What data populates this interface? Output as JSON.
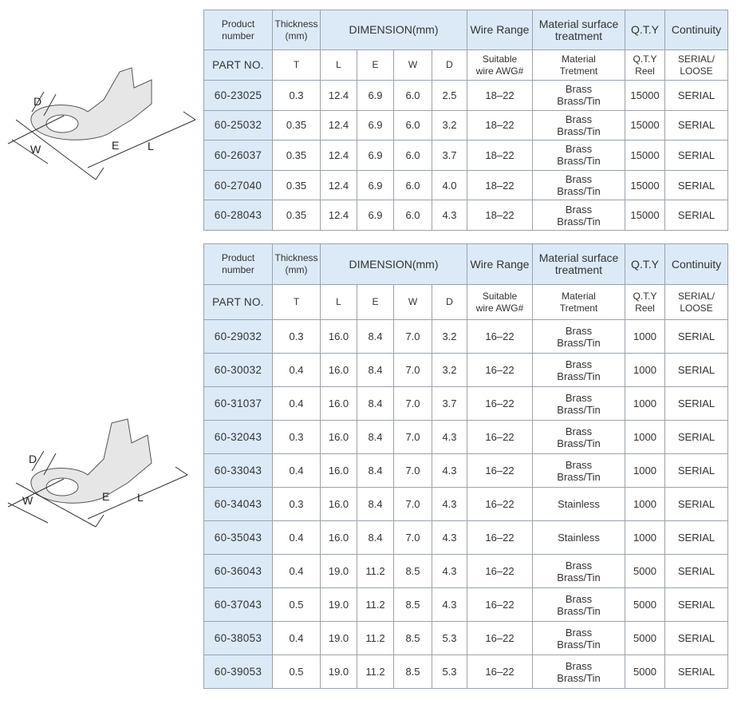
{
  "diagrams": [
    {
      "labels": {
        "D": "D",
        "W": "W",
        "E": "E",
        "L": "L"
      }
    },
    {
      "labels": {
        "D": "D",
        "W": "W",
        "E": "E",
        "L": "L"
      }
    }
  ],
  "tables": [
    {
      "header_top": [
        "Product\nnumber",
        "Thickness\n(mm)",
        "DIMENSION(mm)",
        "Wire Range",
        "Material surface\ntreatment",
        "Q.T.Y",
        "Continuity"
      ],
      "header_sub": [
        "PART NO.",
        "T",
        "L",
        "E",
        "W",
        "D",
        "Suitable\nwire AWG#",
        "Material\nTretment",
        "Q.T.Y\nReel",
        "SERIAL/\nLOOSE"
      ],
      "rows": [
        [
          "60-23025",
          "0.3",
          "12.4",
          "6.9",
          "6.0",
          "2.5",
          "18–22",
          "Brass\nBrass/Tin",
          "15000",
          "SERIAL"
        ],
        [
          "60-25032",
          "0.35",
          "12.4",
          "6.9",
          "6.0",
          "3.2",
          "18–22",
          "Brass\nBrass/Tin",
          "15000",
          "SERIAL"
        ],
        [
          "60-26037",
          "0.35",
          "12.4",
          "6.9",
          "6.0",
          "3.7",
          "18–22",
          "Brass\nBrass/Tin",
          "15000",
          "SERIAL"
        ],
        [
          "60-27040",
          "0.35",
          "12.4",
          "6.9",
          "6.0",
          "4.0",
          "18–22",
          "Brass\nBrass/Tin",
          "15000",
          "SERIAL"
        ],
        [
          "60-28043",
          "0.35",
          "12.4",
          "6.9",
          "6.0",
          "4.3",
          "18–22",
          "Brass\nBrass/Tin",
          "15000",
          "SERIAL"
        ]
      ]
    },
    {
      "header_top": [
        "Product\nnumber",
        "Thickness\n(mm)",
        "DIMENSION(mm)",
        "Wire Range",
        "Material surface\ntreatment",
        "Q.T.Y",
        "Continuity"
      ],
      "header_sub": [
        "PART NO.",
        "T",
        "L",
        "E",
        "W",
        "D",
        "Suitable\nwire AWG#",
        "Material\nTretment",
        "Q.T.Y\nReel",
        "SERIAL/\nLOOSE"
      ],
      "rows": [
        [
          "60-29032",
          "0.3",
          "16.0",
          "8.4",
          "7.0",
          "3.2",
          "16–22",
          "Brass\nBrass/Tin",
          "1000",
          "SERIAL"
        ],
        [
          "60-30032",
          "0.4",
          "16.0",
          "8.4",
          "7.0",
          "3.2",
          "16–22",
          "Brass\nBrass/Tin",
          "1000",
          "SERIAL"
        ],
        [
          "60-31037",
          "0.4",
          "16.0",
          "8.4",
          "7.0",
          "3.7",
          "16–22",
          "Brass\nBrass/Tin",
          "1000",
          "SERIAL"
        ],
        [
          "60-32043",
          "0.3",
          "16.0",
          "8.4",
          "7.0",
          "4.3",
          "16–22",
          "Brass\nBrass/Tin",
          "1000",
          "SERIAL"
        ],
        [
          "60-33043",
          "0.4",
          "16.0",
          "8.4",
          "7.0",
          "4.3",
          "16–22",
          "Brass\nBrass/Tin",
          "1000",
          "SERIAL"
        ],
        [
          "60-34043",
          "0.3",
          "16.0",
          "8.4",
          "7.0",
          "4.3",
          "16–22",
          "Stainless",
          "1000",
          "SERIAL"
        ],
        [
          "60-35043",
          "0.4",
          "16.0",
          "8.4",
          "7.0",
          "4.3",
          "16–22",
          "Stainless",
          "1000",
          "SERIAL"
        ],
        [
          "60-36043",
          "0.4",
          "19.0",
          "11.2",
          "8.5",
          "4.3",
          "16–22",
          "Brass\nBrass/Tin",
          "5000",
          "SERIAL"
        ],
        [
          "60-37043",
          "0.5",
          "19.0",
          "11.2",
          "8.5",
          "4.3",
          "16–22",
          "Brass\nBrass/Tin",
          "5000",
          "SERIAL"
        ],
        [
          "60-38053",
          "0.4",
          "19.0",
          "11.2",
          "8.5",
          "5.3",
          "16–22",
          "Brass\nBrass/Tin",
          "5000",
          "SERIAL"
        ],
        [
          "60-39053",
          "0.5",
          "19.0",
          "11.2",
          "8.5",
          "5.3",
          "16–22",
          "Brass\nBrass/Tin",
          "5000",
          "SERIAL"
        ]
      ]
    }
  ]
}
